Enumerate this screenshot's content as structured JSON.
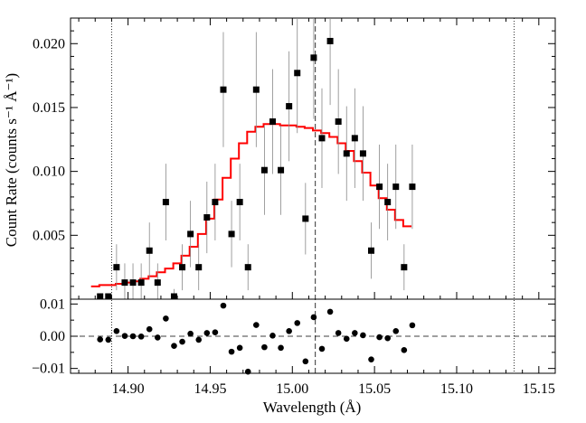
{
  "chart_data": {
    "type": "scatter",
    "xlabel": "Wavelength (Å)",
    "xlim": [
      14.865,
      15.16
    ],
    "xticks": [
      "14.90",
      "14.95",
      "15.00",
      "15.05",
      "15.10",
      "15.15"
    ],
    "xtick_values": [
      14.9,
      14.95,
      15.0,
      15.05,
      15.1,
      15.15
    ],
    "vertical_lines": {
      "dotted": [
        14.89,
        15.135
      ],
      "dashed": [
        15.014
      ]
    },
    "top_panel": {
      "ylabel": "Count Rate (counts s⁻¹ Å⁻¹)",
      "ylim": [
        0,
        0.022
      ],
      "yticks": [
        "0.005",
        "0.010",
        "0.015",
        "0.020"
      ],
      "ytick_values": [
        0.005,
        0.01,
        0.015,
        0.02
      ],
      "data": {
        "x": [
          14.883,
          14.888,
          14.893,
          14.898,
          14.903,
          14.908,
          14.913,
          14.918,
          14.923,
          14.928,
          14.933,
          14.938,
          14.943,
          14.948,
          14.953,
          14.958,
          14.963,
          14.968,
          14.973,
          14.978,
          14.983,
          14.988,
          14.993,
          14.998,
          15.003,
          15.008,
          15.013,
          15.018,
          15.023,
          15.028,
          15.033,
          15.038,
          15.043,
          15.048,
          15.053,
          15.058,
          15.063,
          15.068,
          15.073
        ],
        "y": [
          0.0,
          0.0,
          0.0025,
          0.0013,
          0.0013,
          0.0013,
          0.0038,
          0.0013,
          0.0076,
          0.0,
          0.0025,
          0.0051,
          0.0025,
          0.0064,
          0.0076,
          0.0164,
          0.0051,
          0.0076,
          0.0025,
          0.0164,
          0.0101,
          0.0139,
          0.0101,
          0.0151,
          0.0177,
          0.0063,
          0.0189,
          0.0126,
          0.0202,
          0.0139,
          0.0114,
          0.0126,
          0.0114,
          0.0038,
          0.0088,
          0.0076,
          0.0088,
          0.0025,
          0.0088
        ],
        "yerr": [
          0.0,
          0.0,
          0.0018,
          0.0015,
          0.0015,
          0.0015,
          0.0022,
          0.0015,
          0.003,
          0.0008,
          0.0018,
          0.0026,
          0.0018,
          0.0028,
          0.003,
          0.0045,
          0.0026,
          0.003,
          0.0018,
          0.0045,
          0.0035,
          0.0041,
          0.0035,
          0.0043,
          0.0047,
          0.0028,
          0.0048,
          0.0039,
          0.005,
          0.0041,
          0.0037,
          0.0039,
          0.0037,
          0.0022,
          0.0033,
          0.003,
          0.0033,
          0.0018,
          0.0033
        ]
      },
      "model": {
        "name": "",
        "color": "#ff0000",
        "x": [
          14.88,
          14.885,
          14.89,
          14.895,
          14.9,
          14.905,
          14.91,
          14.915,
          14.92,
          14.925,
          14.93,
          14.935,
          14.94,
          14.945,
          14.95,
          14.955,
          14.96,
          14.965,
          14.97,
          14.975,
          14.98,
          14.985,
          14.99,
          14.995,
          15.0,
          15.005,
          15.01,
          15.015,
          15.02,
          15.025,
          15.03,
          15.035,
          15.04,
          15.045,
          15.05,
          15.055,
          15.06,
          15.065,
          15.07
        ],
        "y": [
          0.001,
          0.0011,
          0.0011,
          0.0012,
          0.0013,
          0.0014,
          0.0016,
          0.0018,
          0.0021,
          0.0024,
          0.0028,
          0.0034,
          0.0041,
          0.0051,
          0.0063,
          0.0078,
          0.0095,
          0.011,
          0.0122,
          0.0131,
          0.0135,
          0.0137,
          0.0137,
          0.0136,
          0.0136,
          0.0135,
          0.0134,
          0.0132,
          0.013,
          0.0127,
          0.0122,
          0.0116,
          0.0108,
          0.0099,
          0.0089,
          0.0079,
          0.007,
          0.0062,
          0.0057
        ]
      }
    },
    "bottom_panel": {
      "ylim": [
        -0.0115,
        0.0115
      ],
      "yticks": [
        "0.01",
        "0.00",
        "−0.01"
      ],
      "ytick_values": [
        0.01,
        0.0,
        -0.01
      ],
      "residuals": {
        "x": [
          14.883,
          14.888,
          14.893,
          14.898,
          14.903,
          14.908,
          14.913,
          14.918,
          14.923,
          14.928,
          14.933,
          14.938,
          14.943,
          14.948,
          14.953,
          14.958,
          14.963,
          14.968,
          14.973,
          14.978,
          14.983,
          14.988,
          14.993,
          14.998,
          15.003,
          15.008,
          15.013,
          15.018,
          15.023,
          15.028,
          15.033,
          15.038,
          15.043,
          15.048,
          15.053,
          15.058,
          15.063,
          15.068,
          15.073
        ],
        "y": [
          -0.001,
          -0.0011,
          0.0016,
          0.0001,
          0.0,
          -0.0001,
          0.0022,
          -0.0004,
          0.0055,
          -0.003,
          -0.0017,
          0.0008,
          -0.0011,
          0.001,
          0.0012,
          0.0095,
          -0.0048,
          -0.0036,
          -0.011,
          0.0035,
          -0.0034,
          0.0002,
          -0.0036,
          0.0016,
          0.0041,
          -0.0078,
          0.0059,
          -0.0039,
          0.0076,
          0.001,
          -0.0008,
          0.001,
          0.0003,
          -0.0072,
          -0.0003,
          -0.0006,
          0.0016,
          -0.0043,
          0.0034
        ]
      },
      "zero_line": 0.0
    }
  }
}
